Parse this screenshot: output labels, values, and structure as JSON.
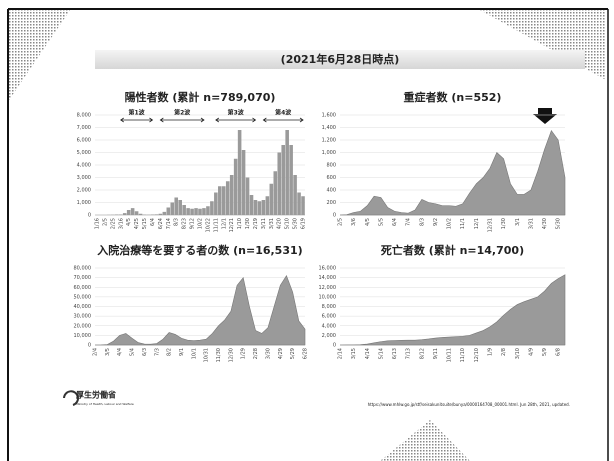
{
  "header": {
    "title": "(2021年6月28日時点)"
  },
  "footer": {
    "logo": "厚生労働省",
    "logo_sub": "Ministry of Health, Labour and Welfare",
    "source": "https://www.mhlw.go.jp/stf/seisakunitsuite/bunya/0000164708_00001.html. Jun 28th, 2021, updated."
  },
  "chart_data": [
    {
      "type": "bar",
      "title": "陽性者数 (累計 n=789,070)",
      "color": "#9a9a9a",
      "annotations": [
        "第1波",
        "第2波",
        "第3波",
        "第4波"
      ],
      "categories": [
        "1/16",
        null,
        "2/5",
        null,
        "2/25",
        null,
        "3/16",
        null,
        "4/5",
        null,
        "4/25",
        null,
        "5/15",
        null,
        "6/4",
        null,
        "6/24",
        null,
        "7/14",
        null,
        "8/3",
        null,
        "8/23",
        null,
        "9/12",
        null,
        "10/2",
        null,
        "10/22",
        null,
        "11/11",
        null,
        "12/1",
        null,
        "12/21",
        null,
        "1/10",
        null,
        "1/30",
        null,
        "2/19",
        null,
        "3/11",
        null,
        "3/31",
        null,
        "4/20",
        null,
        "5/10",
        null,
        "5/30",
        null,
        "6/19"
      ],
      "values": [
        0,
        0,
        0,
        10,
        20,
        40,
        40,
        150,
        400,
        550,
        300,
        100,
        30,
        20,
        40,
        50,
        100,
        250,
        600,
        1000,
        1400,
        1200,
        800,
        550,
        500,
        550,
        500,
        550,
        700,
        1100,
        1800,
        2300,
        2300,
        2700,
        3200,
        4500,
        6800,
        5200,
        3000,
        1600,
        1200,
        1100,
        1200,
        1500,
        2500,
        3500,
        5000,
        5600,
        6800,
        5600,
        3200,
        1800,
        1500
      ],
      "ylim": [
        0,
        8000
      ],
      "yticks": [
        0,
        {
          "value": 1000,
          "label": "1,000"
        },
        {
          "value": 2000,
          "label": "2,000"
        },
        {
          "value": 3000,
          "label": "3,000"
        },
        {
          "value": 4000,
          "label": "4,000"
        },
        {
          "value": 5000,
          "label": "5,000"
        },
        {
          "value": 6000,
          "label": "6,000"
        },
        {
          "value": 7000,
          "label": "7,000"
        },
        {
          "value": 8000,
          "label": "8,000"
        }
      ],
      "grid": true
    },
    {
      "type": "area",
      "title": "重症者数 (n=552)",
      "color": "#9a9a9a",
      "categories": [
        "2/5",
        null,
        "3/6",
        null,
        "4/5",
        null,
        "5/5",
        null,
        "6/4",
        null,
        "7/4",
        null,
        "8/3",
        null,
        "9/2",
        null,
        "10/2",
        null,
        "11/1",
        null,
        "12/1",
        null,
        "12/31",
        null,
        "1/30",
        null,
        "3/1",
        null,
        "3/31",
        null,
        "4/30",
        null,
        "5/30",
        null
      ],
      "values": [
        0,
        5,
        40,
        60,
        150,
        300,
        280,
        120,
        60,
        40,
        30,
        80,
        250,
        200,
        180,
        150,
        150,
        140,
        180,
        350,
        500,
        600,
        750,
        1000,
        900,
        500,
        330,
        330,
        400,
        700,
        1050,
        1350,
        1200,
        600
      ],
      "ylim": [
        0,
        1600
      ],
      "yticks": [
        0,
        200,
        400,
        600,
        800,
        {
          "value": 1000,
          "label": "1,000"
        },
        {
          "value": 1200,
          "label": "1,200"
        },
        {
          "value": 1400,
          "label": "1,400"
        },
        {
          "value": 1600,
          "label": "1,600"
        }
      ],
      "grid": true
    },
    {
      "type": "area",
      "title": "入院治療等を要する者の数 (n=16,531)",
      "color": "#9a9a9a",
      "categories": [
        "2/4",
        null,
        "3/5",
        null,
        "4/4",
        null,
        "5/4",
        null,
        "6/3",
        null,
        "7/3",
        null,
        "8/2",
        null,
        "9/1",
        null,
        "10/1",
        null,
        "10/31",
        null,
        "11/30",
        null,
        "12/30",
        null,
        "1/29",
        null,
        "2/28",
        null,
        "3/30",
        null,
        "4/29",
        null,
        "5/29",
        null,
        "6/28"
      ],
      "values": [
        0,
        50,
        500,
        4000,
        10000,
        12000,
        7000,
        2500,
        1000,
        800,
        1500,
        6000,
        13000,
        11000,
        7000,
        5000,
        4500,
        5000,
        6000,
        12000,
        20000,
        26000,
        35000,
        62000,
        70000,
        40000,
        15000,
        12000,
        18000,
        40000,
        62000,
        72000,
        55000,
        25000,
        16531
      ],
      "ylim": [
        0,
        80000
      ],
      "yticks": [
        0,
        {
          "value": 10000,
          "label": "10,000"
        },
        {
          "value": 20000,
          "label": "20,000"
        },
        {
          "value": 30000,
          "label": "30,000"
        },
        {
          "value": 40000,
          "label": "40,000"
        },
        {
          "value": 50000,
          "label": "50,000"
        },
        {
          "value": 60000,
          "label": "60,000"
        },
        {
          "value": 70000,
          "label": "70,000"
        },
        {
          "value": 80000,
          "label": "80,000"
        }
      ],
      "grid": true
    },
    {
      "type": "area",
      "title": "死亡者数 (累計 n=14,700)",
      "color": "#9a9a9a",
      "categories": [
        "2/14",
        null,
        "3/15",
        null,
        "4/14",
        null,
        "5/14",
        null,
        "6/13",
        null,
        "7/13",
        null,
        "8/12",
        null,
        "9/11",
        null,
        "10/11",
        null,
        "11/10",
        null,
        "12/10",
        null,
        "1/9",
        null,
        "2/8",
        null,
        "3/10",
        null,
        "4/9",
        null,
        "5/9",
        null,
        "6/8",
        null
      ],
      "values": [
        0,
        5,
        20,
        60,
        200,
        450,
        700,
        880,
        920,
        970,
        990,
        1000,
        1100,
        1250,
        1450,
        1570,
        1650,
        1720,
        1820,
        2000,
        2500,
        3000,
        3800,
        4800,
        6200,
        7400,
        8400,
        9000,
        9500,
        10000,
        11200,
        12800,
        13800,
        14600
      ],
      "ylim": [
        0,
        16000
      ],
      "yticks": [
        0,
        {
          "value": 2000,
          "label": "2,000"
        },
        {
          "value": 4000,
          "label": "4,000"
        },
        {
          "value": 6000,
          "label": "6,000"
        },
        {
          "value": 8000,
          "label": "8,000"
        },
        {
          "value": 10000,
          "label": "10,000"
        },
        {
          "value": 12000,
          "label": "12,000"
        },
        {
          "value": 14000,
          "label": "14,000"
        },
        {
          "value": 16000,
          "label": "16,000"
        }
      ],
      "grid": true
    }
  ]
}
